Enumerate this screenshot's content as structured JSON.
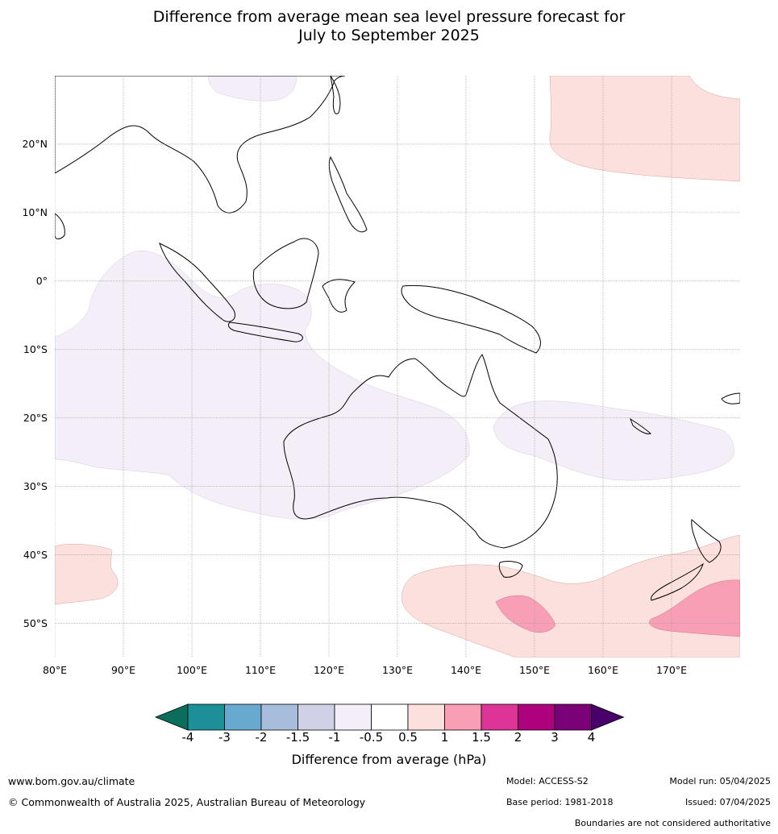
{
  "title": {
    "line1": "Difference from average mean sea level pressure forecast for",
    "line2": "July to September 2025"
  },
  "map": {
    "lat_labels": [
      "20°N",
      "10°N",
      "0°",
      "10°S",
      "20°S",
      "30°S",
      "40°S",
      "50°S"
    ],
    "lon_labels": [
      "80°E",
      "90°E",
      "100°E",
      "110°E",
      "120°E",
      "130°E",
      "140°E",
      "150°E",
      "160°E",
      "170°E"
    ],
    "lat_range": [
      -55,
      30
    ],
    "lon_range": [
      80,
      180
    ]
  },
  "colorbar": {
    "title": "Difference from average (hPa)",
    "ticks": [
      "-4",
      "-3",
      "-2",
      "-1.5",
      "-1",
      "-0.5",
      "0.5",
      "1",
      "1.5",
      "2",
      "3",
      "4"
    ],
    "colors": [
      "#0b6d5c",
      "#1c9099",
      "#67a9cf",
      "#a6bddb",
      "#d0d1e6",
      "#f3eef7",
      "#ffffff",
      "#fce0de",
      "#f89fb6",
      "#dd3497",
      "#ae017e",
      "#7a0177",
      "#49006a"
    ]
  },
  "footer": {
    "website": "www.bom.gov.au/climate",
    "copyright": "© Commonwealth of Australia 2025, Australian Bureau of Meteorology",
    "model": "Model: ACCESS-S2",
    "base_period": "Base period: 1981-2018",
    "model_run": "Model run: 05/04/2025",
    "issued": "Issued: 07/04/2025",
    "disclaimer": "Boundaries are not considered authoritative"
  }
}
